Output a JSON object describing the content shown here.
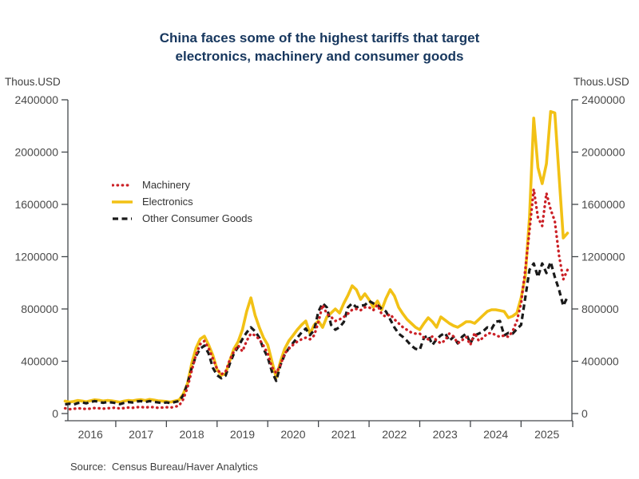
{
  "page": {
    "background": "#ffffff"
  },
  "title": {
    "line1": "China faces some of the highest tariffs that target",
    "line2": "electronics, machinery and consumer goods",
    "color": "#17375E"
  },
  "axis_units": {
    "left": "Thous.USD",
    "right": "Thous.USD"
  },
  "source": {
    "text": "Source:  Census Bureau/Haver Analytics"
  },
  "chart_data": {
    "type": "line",
    "unit": "Thous.USD",
    "frequency": "monthly",
    "x_start": "2016-01",
    "x_end": "2025-12",
    "grid": false,
    "legend_position": "upper-left-inside",
    "text_color": "#4a4a4a",
    "axis_color": "#43474c",
    "x_axis": {
      "years": [
        "2016",
        "2017",
        "2018",
        "2019",
        "2020",
        "2021",
        "2022",
        "2023",
        "2024",
        "2025"
      ]
    },
    "y_axis": {
      "min": 0,
      "max": 2400000,
      "tick_step": 400000,
      "ticks": [
        "0",
        "400000",
        "800000",
        "1200000",
        "1600000",
        "2000000",
        "2400000"
      ]
    },
    "series": [
      {
        "name": "Machinery",
        "color": "#CB2026",
        "dash": "dotted",
        "values": [
          40000,
          33000,
          36000,
          40000,
          38000,
          35000,
          38000,
          42000,
          40000,
          37000,
          40000,
          42000,
          45000,
          38000,
          42000,
          46000,
          44000,
          48000,
          50000,
          46000,
          50000,
          48000,
          44000,
          46000,
          48000,
          45000,
          52000,
          60000,
          110000,
          200000,
          330000,
          450000,
          530000,
          555000,
          500000,
          420000,
          340000,
          300000,
          320000,
          410000,
          476000,
          520000,
          476000,
          556000,
          611000,
          598000,
          568000,
          519000,
          458000,
          354000,
          311000,
          372000,
          458000,
          495000,
          525000,
          550000,
          568000,
          580000,
          568000,
          598000,
          700000,
          830000,
          763000,
          739000,
          708000,
          720000,
          739000,
          763000,
          794000,
          800000,
          790000,
          812000,
          812000,
          790000,
          830000,
          760000,
          740000,
          760000,
          720000,
          690000,
          660000,
          640000,
          620000,
          611000,
          611000,
          580000,
          568000,
          590000,
          560000,
          537000,
          560000,
          611000,
          590000,
          537000,
          560000,
          586000,
          525000,
          617000,
          556000,
          580000,
          611000,
          617000,
          600000,
          586000,
          598000,
          586000,
          630000,
          708000,
          843000,
          1100000,
          1400000,
          1716000,
          1500000,
          1435000,
          1686000,
          1560000,
          1472000,
          1209000,
          1026000,
          1099000
        ]
      },
      {
        "name": "Electronics",
        "color": "#F2C115",
        "dash": "solid",
        "values": [
          95000,
          88000,
          92000,
          100000,
          96000,
          90000,
          98000,
          105000,
          102000,
          96000,
          100000,
          98000,
          92000,
          86000,
          95000,
          101000,
          98000,
          104000,
          106000,
          100000,
          108000,
          104000,
          98000,
          95000,
          92000,
          88000,
          96000,
          104000,
          150000,
          230000,
          385000,
          500000,
          570000,
          592000,
          525000,
          446000,
          336000,
          293000,
          305000,
          403000,
          495000,
          550000,
          641000,
          781000,
          885000,
          751000,
          659000,
          580000,
          525000,
          397000,
          275000,
          397000,
          495000,
          556000,
          598000,
          641000,
          678000,
          708000,
          611000,
          678000,
          708000,
          659000,
          739000,
          769000,
          800000,
          769000,
          843000,
          904000,
          977000,
          947000,
          873000,
          916000,
          870000,
          812000,
          861000,
          794000,
          880000,
          947000,
          900000,
          812000,
          763000,
          720000,
          690000,
          660000,
          641000,
          690000,
          733000,
          702000,
          660000,
          739000,
          715000,
          690000,
          672000,
          660000,
          680000,
          702000,
          702000,
          690000,
          720000,
          751000,
          781000,
          794000,
          794000,
          788000,
          781000,
          733000,
          745000,
          769000,
          885000,
          1050000,
          1500000,
          2260000,
          1881000,
          1759000,
          1911000,
          2310000,
          2300000,
          1820000,
          1343000,
          1380000
        ]
      },
      {
        "name": "Other Consumer Goods",
        "color": "#1A1A1A",
        "dash": "dashed",
        "values": [
          70000,
          75000,
          68000,
          80000,
          85000,
          78000,
          88000,
          95000,
          90000,
          82000,
          88000,
          85000,
          80000,
          72000,
          82000,
          88000,
          85000,
          92000,
          95000,
          88000,
          95000,
          90000,
          85000,
          80000,
          85000,
          80000,
          88000,
          95000,
          140000,
          230000,
          350000,
          440000,
          495000,
          520000,
          460000,
          350000,
          293000,
          270000,
          290000,
          380000,
          460000,
          510000,
          570000,
          620000,
          659000,
          629000,
          580000,
          495000,
          430000,
          320000,
          250000,
          370000,
          450000,
          500000,
          540000,
          580000,
          620000,
          650000,
          600000,
          640000,
          780000,
          843000,
          812000,
          678000,
          641000,
          660000,
          700000,
          812000,
          843000,
          812000,
          824000,
          830000,
          861000,
          843000,
          830000,
          800000,
          781000,
          720000,
          659000,
          611000,
          586000,
          556000,
          519000,
          495000,
          488000,
          580000,
          598000,
          525000,
          568000,
          598000,
          617000,
          556000,
          586000,
          537000,
          586000,
          611000,
          537000,
          598000,
          611000,
          629000,
          659000,
          647000,
          702000,
          708000,
          598000,
          617000,
          611000,
          647000,
          678000,
          885000,
          1100000,
          1148000,
          1044000,
          1148000,
          1075000,
          1160000,
          1044000,
          947000,
          824000,
          892000
        ]
      }
    ]
  }
}
